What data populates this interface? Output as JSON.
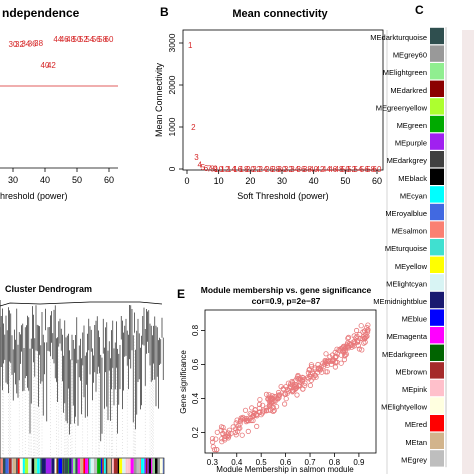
{
  "panel_a": {
    "title_fragment": "ndependence",
    "xlabel_fragment": "hreshold (power)",
    "x_ticks": [
      "30",
      "40",
      "50",
      "60"
    ],
    "point_labels": [
      "4",
      "5",
      "6",
      "7",
      "8",
      "9",
      "10",
      "12",
      "14",
      "16",
      "18",
      "20",
      "22",
      "24",
      "26",
      "28",
      "30",
      "32",
      "34",
      "36",
      "38",
      "40",
      "42",
      "44",
      "46",
      "48",
      "50",
      "52",
      "54",
      "56",
      "58",
      "60"
    ],
    "cutoff_color": "#d62728",
    "label_color": "#d62728"
  },
  "panel_b": {
    "letter": "B",
    "title": "Mean connectivity",
    "xlabel": "Soft Threshold (power)",
    "ylabel": "Mean Connectivity",
    "x_ticks": [
      "0",
      "10",
      "20",
      "30",
      "40",
      "50",
      "60"
    ],
    "y_ticks": [
      "0",
      "1000",
      "2000",
      "3000"
    ],
    "label_color": "#d62728"
  },
  "panel_c": {
    "letter": "C",
    "modules": [
      {
        "name": "MEdarkturquoise",
        "color": "#2f4f4f"
      },
      {
        "name": "MEgrey60",
        "color": "#999999"
      },
      {
        "name": "MElightgreen",
        "color": "#90ee90"
      },
      {
        "name": "MEdarkred",
        "color": "#8b0000"
      },
      {
        "name": "MEgreenyellow",
        "color": "#adff2f"
      },
      {
        "name": "MEgreen",
        "color": "#00aa00"
      },
      {
        "name": "MEpurple",
        "color": "#a020f0"
      },
      {
        "name": "MEdarkgrey",
        "color": "#404040"
      },
      {
        "name": "MEblack",
        "color": "#000000"
      },
      {
        "name": "MEcyan",
        "color": "#00ffff"
      },
      {
        "name": "MEroyalblue",
        "color": "#4169e1"
      },
      {
        "name": "MEsalmon",
        "color": "#fa8072"
      },
      {
        "name": "MEturquoise",
        "color": "#40e0d0"
      },
      {
        "name": "MEyellow",
        "color": "#ffff00"
      },
      {
        "name": "MElightcyan",
        "color": "#d8f4f4"
      },
      {
        "name": "MEmidnightblue",
        "color": "#191970"
      },
      {
        "name": "MEblue",
        "color": "#0000ff"
      },
      {
        "name": "MEmagenta",
        "color": "#ff00ff"
      },
      {
        "name": "MEdarkgreen",
        "color": "#006400"
      },
      {
        "name": "MEbrown",
        "color": "#a52a2a"
      },
      {
        "name": "MEpink",
        "color": "#ffc0cb"
      },
      {
        "name": "MElightyellow",
        "color": "#ffffe0"
      },
      {
        "name": "MEred",
        "color": "#ff0000"
      },
      {
        "name": "MEtan",
        "color": "#d2b48c"
      },
      {
        "name": "MEgrey",
        "color": "#bebebe"
      }
    ]
  },
  "panel_d": {
    "title_fragment": "Cluster Dendrogram"
  },
  "panel_e": {
    "letter": "E",
    "title": "Module membership vs. gene significance",
    "subtitle": "cor=0.9, p=2e−87",
    "xlabel": "Module Membership in salmon module",
    "ylabel": "Gene significance",
    "x_ticks": [
      "0.3",
      "0.4",
      "0.5",
      "0.6",
      "0.7",
      "0.8",
      "0.9"
    ],
    "y_ticks": [
      "0.2",
      "0.4",
      "0.6",
      "0.8"
    ],
    "point_color": "#e8787a"
  },
  "chart_data": [
    {
      "type": "scatter",
      "title": "Mean connectivity",
      "xlabel": "Soft Threshold (power)",
      "ylabel": "Mean Connectivity",
      "xlim": [
        0,
        60
      ],
      "ylim": [
        0,
        3200
      ],
      "x": [
        1,
        2,
        3,
        4,
        5,
        6,
        7,
        8,
        9,
        10,
        12,
        14,
        16,
        18,
        20,
        22,
        24,
        26,
        28,
        30,
        32,
        34,
        36,
        38,
        40,
        42,
        44,
        46,
        48,
        50,
        52,
        54,
        56,
        58,
        60
      ],
      "y": [
        2950,
        1000,
        290,
        110,
        50,
        25,
        14,
        9,
        6,
        4,
        2,
        1,
        1,
        0,
        0,
        0,
        0,
        0,
        0,
        0,
        0,
        0,
        0,
        0,
        0,
        0,
        0,
        0,
        0,
        0,
        0,
        0,
        0,
        0,
        0
      ]
    },
    {
      "type": "scatter",
      "title": "Module membership vs. gene significance",
      "subtitle": "cor=0.9, p=2e−87",
      "xlabel": "Module Membership in salmon module",
      "ylabel": "Gene significance",
      "xlim": [
        0.27,
        0.97
      ],
      "ylim": [
        0.08,
        0.92
      ],
      "correlation": 0.9,
      "p_value": "2e-87",
      "n_points_approx": 300
    }
  ]
}
